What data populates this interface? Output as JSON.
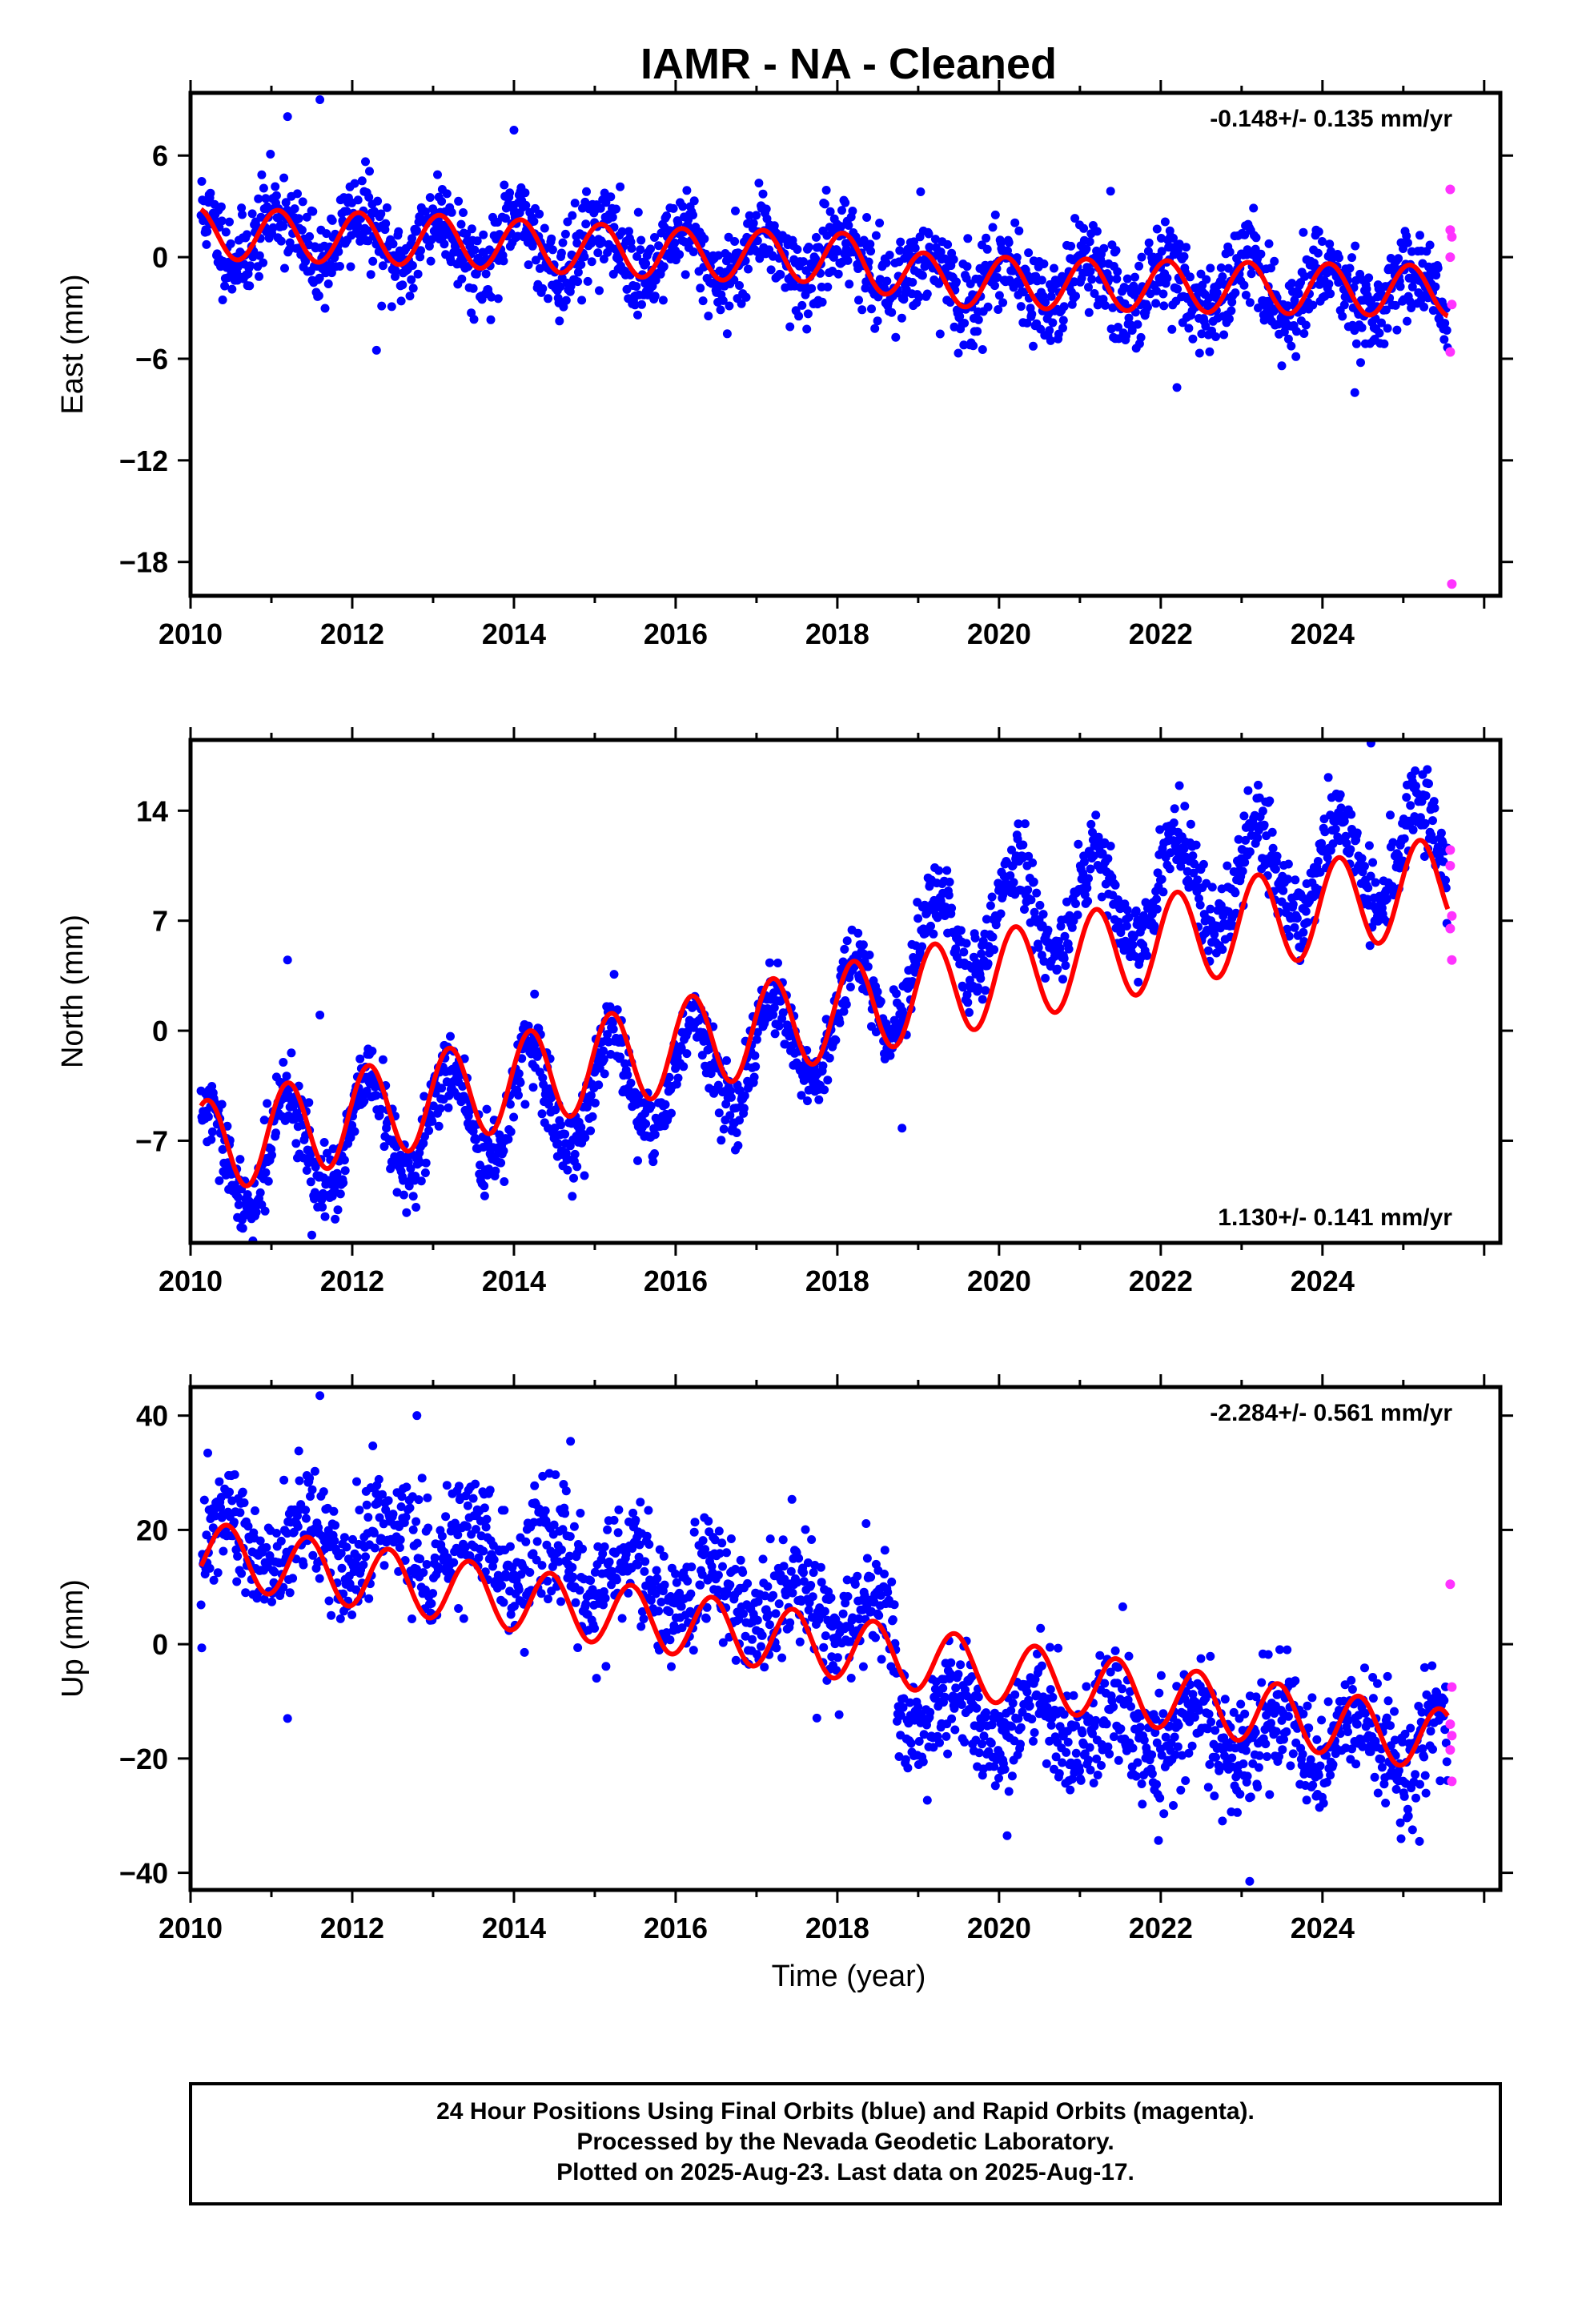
{
  "title": "IAMR  - NA - Cleaned",
  "x_axis_label": "Time (year)",
  "footer": [
    "24 Hour Positions Using Final Orbits (blue) and Rapid Orbits (magenta).",
    "Processed by the Nevada Geodetic Laboratory.",
    "Plotted on 2025-Aug-23. Last data on 2025-Aug-17."
  ],
  "colors": {
    "final": "#0000ff",
    "rapid": "#ff33ff",
    "model": "#ff0000",
    "frame": "#000000"
  },
  "chart_data": [
    {
      "type": "scatter",
      "component": "East",
      "ylabel": "East (mm)",
      "rate_label": "-0.148+/- 0.135 mm/yr",
      "rate_position": "top-right",
      "xlim": [
        2010.0,
        2026.2
      ],
      "ylim": [
        -20.0,
        9.7
      ],
      "xticks": [
        2010,
        2012,
        2014,
        2016,
        2018,
        2020,
        2022,
        2024
      ],
      "xtick_labels": [
        "2010",
        "2012",
        "2014",
        "2016",
        "2018",
        "2020",
        "2022",
        "2024"
      ],
      "yticks": [
        6,
        0,
        -6,
        -12,
        -18
      ],
      "ytick_labels": [
        "6",
        "0",
        "−6",
        "−12",
        "−18"
      ],
      "series": [
        {
          "role": "final_orbits",
          "color": "#0000ff",
          "x_range": [
            2010.13,
            2025.55
          ],
          "model_breakpoints": [
            [
              2010.13,
              1.4
            ],
            [
              2013.0,
              1.0
            ],
            [
              2016.0,
              0.2
            ],
            [
              2018.0,
              0.0
            ],
            [
              2019.2,
              -1.4
            ],
            [
              2021.0,
              -1.6
            ],
            [
              2023.0,
              -1.8
            ],
            [
              2025.55,
              -2.0
            ]
          ],
          "model_amp": 1.5,
          "model_phase": 2010.08,
          "scatter": 1.3,
          "outliers": [
            [
              2011.2,
              8.3
            ],
            [
              2011.6,
              9.3
            ],
            [
              2014.0,
              7.5
            ],
            [
              2012.3,
              -5.5
            ],
            [
              2022.2,
              -7.7
            ],
            [
              2024.4,
              -8.0
            ]
          ]
        },
        {
          "role": "rapid_orbits",
          "color": "#ff33ff",
          "points": [
            [
              2025.58,
              4.0
            ],
            [
              2025.58,
              1.6
            ],
            [
              2025.6,
              1.2
            ],
            [
              2025.58,
              0.0
            ],
            [
              2025.6,
              -2.8
            ],
            [
              2025.58,
              -5.6
            ],
            [
              2025.6,
              -19.3
            ]
          ]
        },
        {
          "role": "model",
          "color": "#ff0000"
        }
      ]
    },
    {
      "type": "scatter",
      "component": "North",
      "ylabel": "North (mm)",
      "rate_label": "1.130+/- 0.141 mm/yr",
      "rate_position": "bottom-right",
      "xlim": [
        2010.0,
        2026.2
      ],
      "ylim": [
        -13.5,
        18.5
      ],
      "xticks": [
        2010,
        2012,
        2014,
        2016,
        2018,
        2020,
        2022,
        2024
      ],
      "xtick_labels": [
        "2010",
        "2012",
        "2014",
        "2016",
        "2018",
        "2020",
        "2022",
        "2024"
      ],
      "yticks": [
        14,
        7,
        0,
        -7
      ],
      "ytick_labels": [
        "14",
        "7",
        "0",
        "−7"
      ],
      "series": [
        {
          "role": "final_orbits",
          "color": "#0000ff",
          "x_range": [
            2010.13,
            2025.55
          ],
          "model_breakpoints": [
            [
              2010.13,
              -7.5
            ],
            [
              2018.0,
              1.2
            ],
            [
              2025.55,
              9.5
            ]
          ],
          "model_amp": 3.0,
          "model_phase": 2010.2,
          "scatter": 1.2,
          "data_breakpoints": [
            [
              2010.13,
              -8.5
            ],
            [
              2016.0,
              -3.0
            ],
            [
              2018.0,
              0.5
            ],
            [
              2019.0,
              4.5
            ],
            [
              2020.0,
              7.5
            ],
            [
              2025.55,
              11.5
            ]
          ],
          "data_amp": 3.3,
          "outliers": [
            [
              2011.2,
              4.5
            ],
            [
              2011.6,
              1.0
            ],
            [
              2018.8,
              -6.2
            ],
            [
              2011.5,
              -13.0
            ],
            [
              2024.6,
              18.3
            ]
          ]
        },
        {
          "role": "rapid_orbits",
          "color": "#ff33ff",
          "points": [
            [
              2025.58,
              11.5
            ],
            [
              2025.58,
              10.5
            ],
            [
              2025.6,
              7.3
            ],
            [
              2025.58,
              6.5
            ],
            [
              2025.6,
              4.5
            ]
          ]
        },
        {
          "role": "model",
          "color": "#ff0000"
        }
      ]
    },
    {
      "type": "scatter",
      "component": "Up",
      "ylabel": "Up (mm)",
      "rate_label": "-2.284+/- 0.561 mm/yr",
      "rate_position": "top-right",
      "xlim": [
        2010.0,
        2026.2
      ],
      "ylim": [
        -43.0,
        45.0
      ],
      "xticks": [
        2010,
        2012,
        2014,
        2016,
        2018,
        2020,
        2022,
        2024
      ],
      "xtick_labels": [
        "2010",
        "2012",
        "2014",
        "2016",
        "2018",
        "2020",
        "2022",
        "2024"
      ],
      "yticks": [
        40,
        20,
        0,
        -20,
        -40
      ],
      "ytick_labels": [
        "40",
        "20",
        "0",
        "−20",
        "−40"
      ],
      "series": [
        {
          "role": "final_orbits",
          "color": "#0000ff",
          "x_range": [
            2010.13,
            2025.55
          ],
          "model_breakpoints": [
            [
              2010.13,
              16.0
            ],
            [
              2018.7,
              -2.0
            ],
            [
              2025.55,
              -17.0
            ]
          ],
          "model_amp": 5.5,
          "model_phase": 2010.45,
          "scatter": 5.0,
          "data_breakpoints": [
            [
              2010.13,
              17.0
            ],
            [
              2012.8,
              18.0
            ],
            [
              2018.7,
              3.0
            ],
            [
              2018.75,
              -12.0
            ],
            [
              2025.55,
              -18.0
            ]
          ],
          "data_amp": 5.0,
          "outliers": [
            [
              2011.6,
              43.5
            ],
            [
              2012.8,
              40.0
            ],
            [
              2014.7,
              35.5
            ],
            [
              2011.2,
              -13.0
            ],
            [
              2023.1,
              -41.5
            ],
            [
              2020.1,
              -33.5
            ],
            [
              2025.2,
              -34.5
            ]
          ]
        },
        {
          "role": "rapid_orbits",
          "color": "#ff33ff",
          "points": [
            [
              2025.58,
              10.5
            ],
            [
              2025.6,
              -7.5
            ],
            [
              2025.58,
              -14.0
            ],
            [
              2025.6,
              -16.0
            ],
            [
              2025.58,
              -18.5
            ],
            [
              2025.6,
              -24.0
            ]
          ]
        },
        {
          "role": "model",
          "color": "#ff0000"
        }
      ]
    }
  ]
}
